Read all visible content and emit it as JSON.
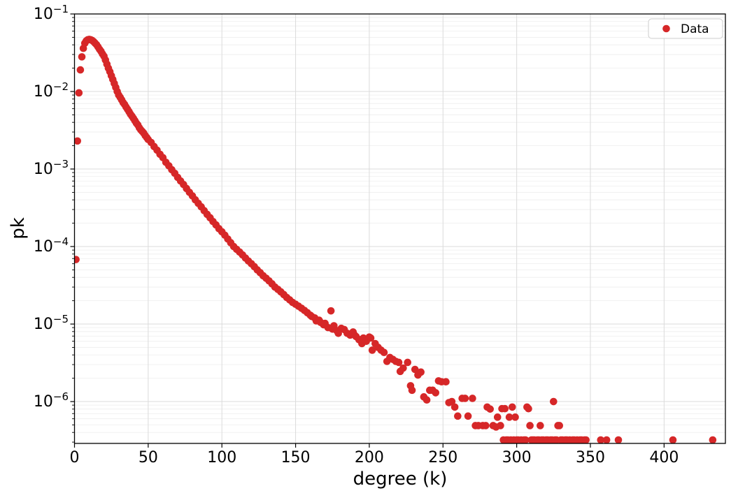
{
  "chart_data": {
    "type": "scatter",
    "title": "",
    "xlabel": "degree (k)",
    "ylabel": "pk",
    "legend": {
      "label": "Data",
      "position": "upper right"
    },
    "marker": {
      "color": "#d62728",
      "radius_px": 5.3
    },
    "grid": {
      "major": true,
      "minor_y": true,
      "major_color": "#dbdbdb",
      "minor_color": "#eeeeee"
    },
    "axes": {
      "xlim": [
        0,
        441.6
      ],
      "x_ticks": [
        0,
        50,
        100,
        150,
        200,
        250,
        300,
        350,
        400
      ],
      "yscale": "log",
      "ylim_exp": [
        -6.54,
        -1
      ],
      "y_tick_exponents": [
        -1,
        -2,
        -3,
        -4,
        -5,
        -6
      ]
    },
    "points": [
      [
        1,
        6.8e-05
      ],
      [
        2,
        0.0023
      ],
      [
        3,
        0.0096
      ],
      [
        4,
        0.019
      ],
      [
        5,
        0.028
      ],
      [
        6,
        0.036
      ],
      [
        7,
        0.042
      ],
      [
        8,
        0.045
      ],
      [
        9,
        0.0465
      ],
      [
        10,
        0.047
      ],
      [
        11,
        0.0465
      ],
      [
        12,
        0.0455
      ],
      [
        13,
        0.044
      ],
      [
        14,
        0.042
      ],
      [
        15,
        0.04
      ],
      [
        16,
        0.0375
      ],
      [
        17,
        0.035
      ],
      [
        18,
        0.033
      ],
      [
        19,
        0.0305
      ],
      [
        20,
        0.0285
      ],
      [
        21,
        0.0255
      ],
      [
        22,
        0.0225
      ],
      [
        23,
        0.02
      ],
      [
        24,
        0.018
      ],
      [
        25,
        0.016
      ],
      [
        26,
        0.0143
      ],
      [
        27,
        0.0127
      ],
      [
        28,
        0.0113
      ],
      [
        29,
        0.01
      ],
      [
        30,
        0.009
      ],
      [
        31,
        0.0084
      ],
      [
        32,
        0.0078
      ],
      [
        33,
        0.0072
      ],
      [
        34,
        0.0068
      ],
      [
        35,
        0.0063
      ],
      [
        36,
        0.0059
      ],
      [
        37,
        0.0055
      ],
      [
        38,
        0.0051
      ],
      [
        39,
        0.0048
      ],
      [
        40,
        0.0045
      ],
      [
        41,
        0.0042
      ],
      [
        42,
        0.0039
      ],
      [
        43,
        0.0037
      ],
      [
        44,
        0.0034
      ],
      [
        45,
        0.0032
      ],
      [
        46,
        0.00305
      ],
      [
        47,
        0.0029
      ],
      [
        48,
        0.0027
      ],
      [
        49,
        0.00255
      ],
      [
        50,
        0.0024
      ],
      [
        52,
        0.0022
      ],
      [
        54,
        0.00195
      ],
      [
        56,
        0.00175
      ],
      [
        58,
        0.00155
      ],
      [
        60,
        0.0014
      ],
      [
        62,
        0.00122
      ],
      [
        64,
        0.0011
      ],
      [
        66,
        0.00098
      ],
      [
        68,
        0.00088
      ],
      [
        70,
        0.00078
      ],
      [
        72,
        0.0007
      ],
      [
        74,
        0.00063
      ],
      [
        76,
        0.00056
      ],
      [
        78,
        0.0005
      ],
      [
        80,
        0.00045
      ],
      [
        82,
        0.0004
      ],
      [
        84,
        0.00036
      ],
      [
        86,
        0.000325
      ],
      [
        88,
        0.00029
      ],
      [
        90,
        0.00026
      ],
      [
        92,
        0.000235
      ],
      [
        94,
        0.00021
      ],
      [
        96,
        0.00019
      ],
      [
        98,
        0.00017
      ],
      [
        100,
        0.000155
      ],
      [
        102,
        0.00014
      ],
      [
        104,
        0.000125
      ],
      [
        106,
        0.000112
      ],
      [
        108,
        0.0001
      ],
      [
        110,
        9.2e-05
      ],
      [
        112,
        8.5e-05
      ],
      [
        114,
        7.8e-05
      ],
      [
        116,
        7.1e-05
      ],
      [
        118,
        6.5e-05
      ],
      [
        120,
        6e-05
      ],
      [
        122,
        5.5e-05
      ],
      [
        124,
        5e-05
      ],
      [
        126,
        4.6e-05
      ],
      [
        128,
        4.2e-05
      ],
      [
        130,
        3.9e-05
      ],
      [
        132,
        3.6e-05
      ],
      [
        134,
        3.3e-05
      ],
      [
        136,
        3e-05
      ],
      [
        138,
        2.8e-05
      ],
      [
        140,
        2.6e-05
      ],
      [
        142,
        2.4e-05
      ],
      [
        144,
        2.2e-05
      ],
      [
        146,
        2.05e-05
      ],
      [
        148,
        1.9e-05
      ],
      [
        150,
        1.8e-05
      ],
      [
        152,
        1.7e-05
      ],
      [
        154,
        1.6e-05
      ],
      [
        156,
        1.5e-05
      ],
      [
        158,
        1.4e-05
      ],
      [
        160,
        1.3e-05
      ],
      [
        161,
        1.25e-05
      ],
      [
        163,
        1.2e-05
      ],
      [
        164,
        1.1e-05
      ],
      [
        166,
        1.12e-05
      ],
      [
        167,
        1.05e-05
      ],
      [
        169,
        9.8e-06
      ],
      [
        170,
        1.02e-05
      ],
      [
        172,
        9e-06
      ],
      [
        174,
        1.48e-05
      ],
      [
        175,
        8.6e-06
      ],
      [
        176,
        9.5e-06
      ],
      [
        178,
        8.2e-06
      ],
      [
        179,
        7.6e-06
      ],
      [
        181,
        8.8e-06
      ],
      [
        183,
        8.5e-06
      ],
      [
        185,
        7.6e-06
      ],
      [
        187,
        7.2e-06
      ],
      [
        189,
        7.9e-06
      ],
      [
        190,
        7.2e-06
      ],
      [
        191,
        6.9e-06
      ],
      [
        193,
        6.3e-06
      ],
      [
        195,
        5.6e-06
      ],
      [
        196,
        6.6e-06
      ],
      [
        198,
        6e-06
      ],
      [
        200,
        6.8e-06
      ],
      [
        201,
        6.6e-06
      ],
      [
        202,
        4.6e-06
      ],
      [
        204,
        5.6e-06
      ],
      [
        206,
        5e-06
      ],
      [
        208,
        4.6e-06
      ],
      [
        210,
        4.3e-06
      ],
      [
        212,
        3.3e-06
      ],
      [
        214,
        3.7e-06
      ],
      [
        216,
        3.5e-06
      ],
      [
        218,
        3.3e-06
      ],
      [
        220,
        3.2e-06
      ],
      [
        221,
        2.45e-06
      ],
      [
        223,
        2.7e-06
      ],
      [
        226,
        3.2e-06
      ],
      [
        228,
        1.6e-06
      ],
      [
        229,
        1.4e-06
      ],
      [
        231,
        2.6e-06
      ],
      [
        233,
        2.2e-06
      ],
      [
        235,
        2.4e-06
      ],
      [
        237,
        1.15e-06
      ],
      [
        239,
        1.05e-06
      ],
      [
        241,
        1.4e-06
      ],
      [
        243,
        1.4e-06
      ],
      [
        245,
        1.3e-06
      ],
      [
        247,
        1.85e-06
      ],
      [
        249,
        1.8e-06
      ],
      [
        252,
        1.8e-06
      ],
      [
        254,
        9.7e-07
      ],
      [
        256,
        1e-06
      ],
      [
        258,
        8.5e-07
      ],
      [
        260,
        6.5e-07
      ],
      [
        263,
        1.1e-06
      ],
      [
        265,
        1.1e-06
      ],
      [
        267,
        6.5e-07
      ],
      [
        270,
        1.1e-06
      ],
      [
        272,
        4.9e-07
      ],
      [
        274,
        4.9e-07
      ],
      [
        277,
        4.9e-07
      ],
      [
        279,
        4.9e-07
      ],
      [
        280,
        8.5e-07
      ],
      [
        282,
        8e-07
      ],
      [
        284,
        4.9e-07
      ],
      [
        286,
        4.7e-07
      ],
      [
        287,
        6.3e-07
      ],
      [
        289,
        4.9e-07
      ],
      [
        290,
        8.1e-07
      ],
      [
        292,
        8.1e-07
      ],
      [
        295,
        6.3e-07
      ],
      [
        297,
        8.5e-07
      ],
      [
        299,
        6.3e-07
      ],
      [
        307,
        8.5e-07
      ],
      [
        308,
        8.1e-07
      ],
      [
        309,
        4.9e-07
      ],
      [
        316,
        4.9e-07
      ],
      [
        325,
        1e-06
      ],
      [
        328,
        4.9e-07
      ],
      [
        329,
        4.9e-07
      ],
      [
        291,
        3.2e-07
      ],
      [
        293,
        3.2e-07
      ],
      [
        294,
        3.2e-07
      ],
      [
        296,
        3.2e-07
      ],
      [
        298,
        3.2e-07
      ],
      [
        300,
        3.2e-07
      ],
      [
        301,
        3.2e-07
      ],
      [
        303,
        3.2e-07
      ],
      [
        305,
        3.2e-07
      ],
      [
        306,
        3.2e-07
      ],
      [
        310,
        3.2e-07
      ],
      [
        311,
        3.2e-07
      ],
      [
        312,
        3.2e-07
      ],
      [
        314,
        3.2e-07
      ],
      [
        315,
        3.2e-07
      ],
      [
        317,
        3.2e-07
      ],
      [
        318,
        3.2e-07
      ],
      [
        320,
        3.2e-07
      ],
      [
        321,
        3.2e-07
      ],
      [
        323,
        3.2e-07
      ],
      [
        324,
        3.2e-07
      ],
      [
        326,
        3.2e-07
      ],
      [
        327,
        3.2e-07
      ],
      [
        330,
        3.2e-07
      ],
      [
        331,
        3.2e-07
      ],
      [
        333,
        3.2e-07
      ],
      [
        334,
        3.2e-07
      ],
      [
        336,
        3.2e-07
      ],
      [
        338,
        3.2e-07
      ],
      [
        339,
        3.2e-07
      ],
      [
        341,
        3.2e-07
      ],
      [
        343,
        3.2e-07
      ],
      [
        344,
        3.2e-07
      ],
      [
        346,
        3.2e-07
      ],
      [
        347,
        3.2e-07
      ],
      [
        357,
        3.2e-07
      ],
      [
        361,
        3.2e-07
      ],
      [
        369,
        3.2e-07
      ],
      [
        406,
        3.2e-07
      ],
      [
        433,
        3.2e-07
      ]
    ]
  }
}
